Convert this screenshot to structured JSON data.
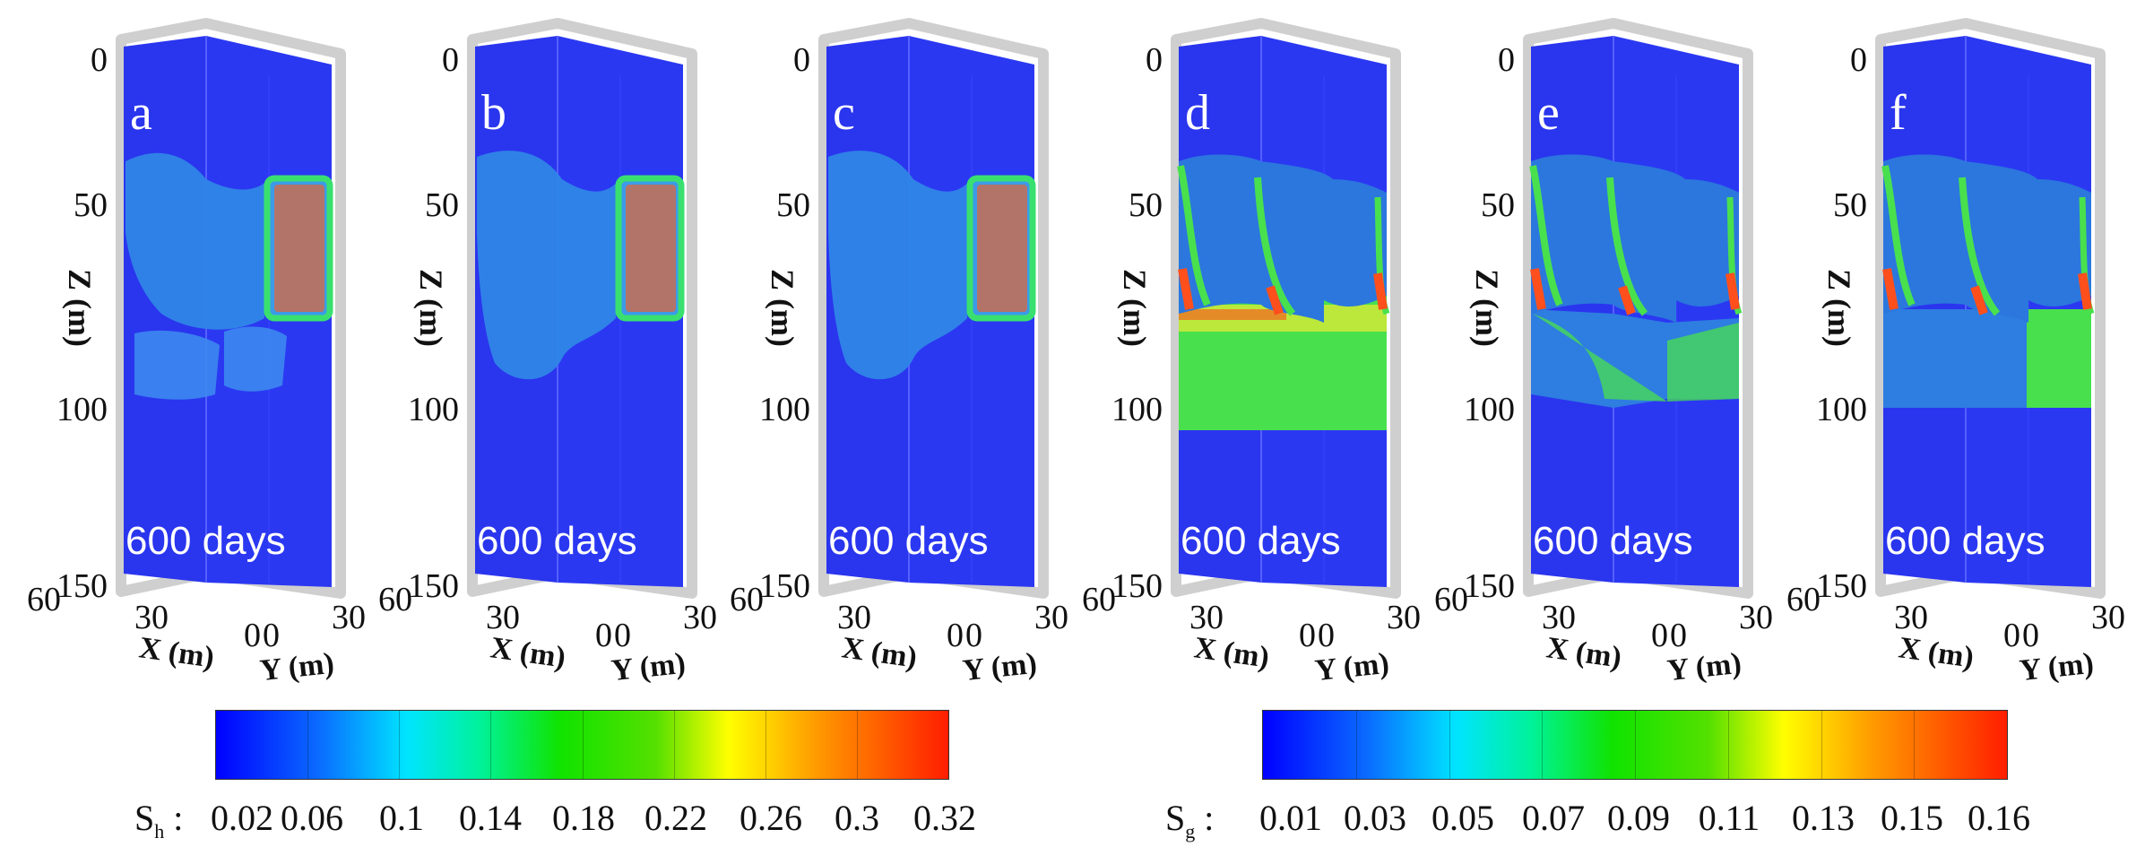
{
  "panels": [
    {
      "label": "a",
      "caption": "600 days",
      "type": "hydrate",
      "variant": 1
    },
    {
      "label": "b",
      "caption": "600 days",
      "type": "hydrate",
      "variant": 2
    },
    {
      "label": "c",
      "caption": "600 days",
      "type": "hydrate",
      "variant": 3
    },
    {
      "label": "d",
      "caption": "600 days",
      "type": "gas",
      "variant": 1
    },
    {
      "label": "e",
      "caption": "600 days",
      "type": "gas",
      "variant": 2
    },
    {
      "label": "f",
      "caption": "600 days",
      "type": "gas",
      "variant": 3
    }
  ],
  "axes": {
    "z_label": "Z (m)",
    "z_ticks": [
      "0",
      "50",
      "100",
      "150"
    ],
    "x_label": "X (m)",
    "y_label": "Y (m)",
    "x_ticks": [
      "60",
      "30",
      "0"
    ],
    "y_ticks": [
      "0",
      "30"
    ]
  },
  "colorbars": [
    {
      "symbol": "S",
      "subscript": "h",
      "separator": " : ",
      "ticks": [
        "0.02",
        "0.06",
        "0.1",
        "0.14",
        "0.18",
        "0.22",
        "0.26",
        "0.3",
        "0.32"
      ]
    },
    {
      "symbol": "S",
      "subscript": "g",
      "separator": " : ",
      "ticks": [
        "0.01",
        "0.03",
        "0.05",
        "0.07",
        "0.09",
        "0.11",
        "0.13",
        "0.15",
        "0.16"
      ]
    }
  ],
  "colors": {
    "background_blue": "#2a35ee",
    "hydrate_blue": "#2f86e6",
    "front_green": "#39e070",
    "core_red": "#c0705a",
    "gas_green": "#49e04e",
    "gas_yellow": "#c9e83a",
    "gas_red": "#ff4f1c",
    "frame_gray": "#cfcfcf"
  }
}
